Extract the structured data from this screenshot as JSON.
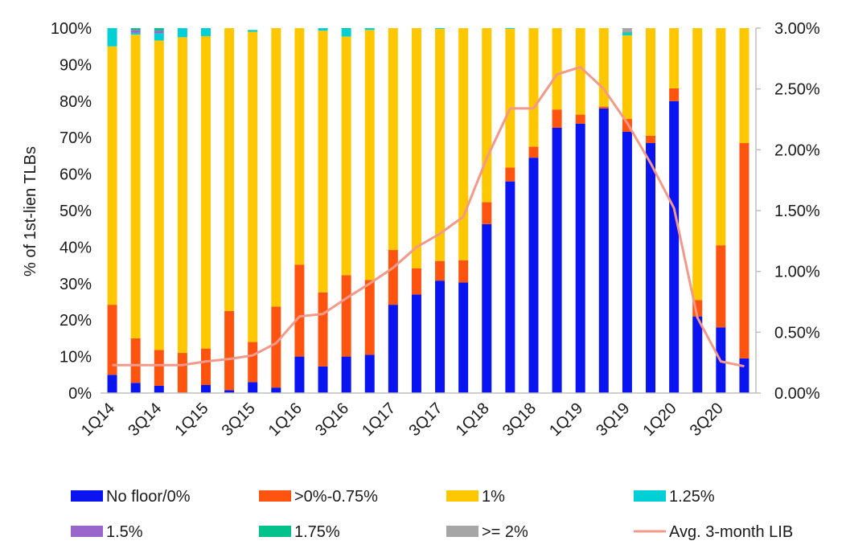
{
  "chart_data": {
    "type": "bar",
    "stacked": true,
    "quarters": [
      "1Q14",
      "2Q14",
      "3Q14",
      "4Q14",
      "1Q15",
      "2Q15",
      "3Q15",
      "4Q15",
      "1Q16",
      "2Q16",
      "3Q16",
      "4Q16",
      "1Q17",
      "2Q17",
      "3Q17",
      "4Q17",
      "1Q18",
      "2Q18",
      "3Q18",
      "4Q18",
      "1Q19",
      "2Q19",
      "3Q19",
      "4Q19",
      "1Q20",
      "2Q20",
      "3Q20",
      "4Q20"
    ],
    "tick_labels": [
      "1Q14",
      "3Q14",
      "1Q15",
      "3Q15",
      "1Q16",
      "3Q16",
      "1Q17",
      "3Q17",
      "1Q18",
      "3Q18",
      "1Q19",
      "3Q19",
      "1Q20",
      "3Q20"
    ],
    "ylabel": "% of 1st-lien TLBs",
    "ylim": [
      0,
      100
    ],
    "y_ticks": [
      "0%",
      "10%",
      "20%",
      "30%",
      "40%",
      "50%",
      "60%",
      "70%",
      "80%",
      "90%",
      "100%"
    ],
    "y2lim": [
      0,
      3.0
    ],
    "y2_ticks": [
      "0.00%",
      "0.50%",
      "1.00%",
      "1.50%",
      "2.00%",
      "2.50%",
      "3.00%"
    ],
    "series": [
      {
        "name": "No floor/0%",
        "color": "#0a14f0",
        "values": [
          5,
          2.8,
          2,
          0,
          2.2,
          0.8,
          3,
          1.5,
          10,
          7.3,
          10,
          10.5,
          24.2,
          27,
          30.8,
          30.3,
          46.3,
          58,
          64.5,
          72.7,
          73.8,
          78,
          71.6,
          68.5,
          80,
          21,
          18,
          9.5
        ]
      },
      {
        "name": ">0%-0.75%",
        "color": "#ff5410",
        "values": [
          19.2,
          12.2,
          9.8,
          11,
          10,
          21.7,
          11,
          22.2,
          25.2,
          20.3,
          22.3,
          20.5,
          15,
          7.2,
          5.4,
          6.1,
          6,
          3.8,
          3,
          5,
          2.5,
          0.5,
          3.5,
          2,
          3.5,
          4.5,
          22.5,
          59
        ]
      },
      {
        "name": "1%",
        "color": "#ffc700",
        "values": [
          70.8,
          83.2,
          84.8,
          86.5,
          85.6,
          77.5,
          85,
          76.3,
          64.8,
          71.7,
          65.4,
          68.5,
          60.8,
          65.8,
          63.6,
          63.6,
          47.7,
          38,
          32.5,
          22.3,
          23.7,
          21.5,
          22.9,
          29.5,
          16.5,
          74.5,
          59.5,
          31.5
        ]
      },
      {
        "name": "1.25%",
        "color": "#00d0d6",
        "values": [
          5,
          0.5,
          2,
          2.5,
          2.2,
          0,
          0.5,
          0,
          0,
          0.7,
          2,
          0.5,
          0,
          0,
          0.2,
          0,
          0,
          0.2,
          0,
          0,
          0,
          0,
          0.5,
          0,
          0,
          0,
          0,
          0
        ]
      },
      {
        "name": "1.5%",
        "color": "#9966cc",
        "values": [
          0,
          0.8,
          0.7,
          0,
          0,
          0,
          0,
          0,
          0,
          0,
          0,
          0,
          0,
          0,
          0,
          0,
          0,
          0,
          0,
          0,
          0,
          0,
          0,
          0,
          0,
          0,
          0,
          0
        ]
      },
      {
        "name": "1.75%",
        "color": "#00c28a",
        "values": [
          0,
          0.5,
          0.7,
          0,
          0,
          0,
          0,
          0,
          0,
          0,
          0.3,
          0,
          0,
          0,
          0,
          0,
          0,
          0,
          0,
          0,
          0,
          0,
          0.3,
          0,
          0,
          0,
          0,
          0
        ]
      },
      {
        "name": ">= 2%",
        "color": "#a6a6a6",
        "values": [
          0,
          0,
          0,
          0,
          0,
          0,
          0,
          0,
          0,
          0,
          0,
          0,
          0,
          0,
          0,
          0,
          0,
          0,
          0,
          0,
          0,
          0,
          1.2,
          0,
          0,
          0,
          0,
          0
        ]
      }
    ],
    "line": {
      "name": "Avg. 3-month LIB",
      "color": "#f4998a",
      "axis": "secondary",
      "values": [
        0.23,
        0.23,
        0.23,
        0.23,
        0.26,
        0.28,
        0.31,
        0.41,
        0.63,
        0.65,
        0.78,
        0.9,
        1.03,
        1.2,
        1.31,
        1.45,
        1.93,
        2.34,
        2.34,
        2.62,
        2.68,
        2.5,
        2.22,
        1.89,
        1.52,
        0.62,
        0.26,
        0.22
      ]
    },
    "legend": {
      "placement": "bottom",
      "entries": [
        "No floor/0%",
        ">0%-0.75%",
        "1%",
        "1.25%",
        "1.5%",
        "1.75%",
        ">= 2%",
        "Avg. 3-month LIB"
      ]
    }
  }
}
